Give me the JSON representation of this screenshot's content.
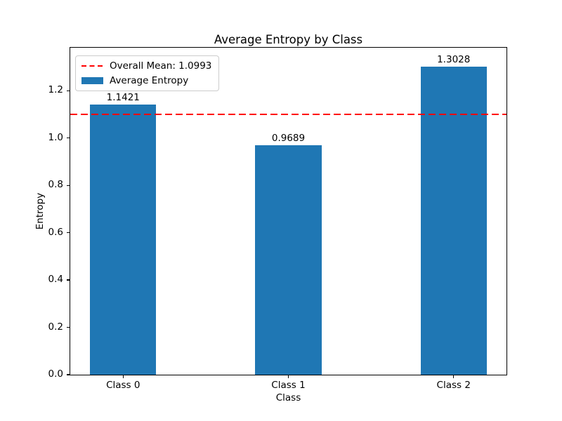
{
  "chart_data": {
    "type": "bar",
    "title": "Average Entropy by Class",
    "xlabel": "Class",
    "ylabel": "Entropy",
    "categories": [
      "Class 0",
      "Class 1",
      "Class 2"
    ],
    "values": [
      1.1421,
      0.9689,
      1.3028
    ],
    "bar_value_labels": [
      "1.1421",
      "0.9689",
      "1.3028"
    ],
    "bar_color": "#1f77b4",
    "mean_line": {
      "value": 1.0993,
      "color": "#ff0000",
      "style": "dashed",
      "label": "Overall Mean: 1.0993"
    },
    "legend": {
      "position": "upper left",
      "entries": [
        {
          "sample": "dashed-red-line",
          "color": "#ff0000",
          "label": "Overall Mean: 1.0993"
        },
        {
          "sample": "blue-patch",
          "color": "#1f77b4",
          "label": "Average Entropy"
        }
      ]
    },
    "yticks": [
      0.0,
      0.2,
      0.4,
      0.6,
      0.8,
      1.0,
      1.2
    ],
    "ytick_labels": [
      "0.0",
      "0.2",
      "0.4",
      "0.6",
      "0.8",
      "1.0",
      "1.2"
    ],
    "ylim": [
      0,
      1.382
    ],
    "xlim": [
      -0.32,
      2.32
    ],
    "bar_width_units": 0.4,
    "grid": false,
    "background_color": "#ffffff"
  }
}
